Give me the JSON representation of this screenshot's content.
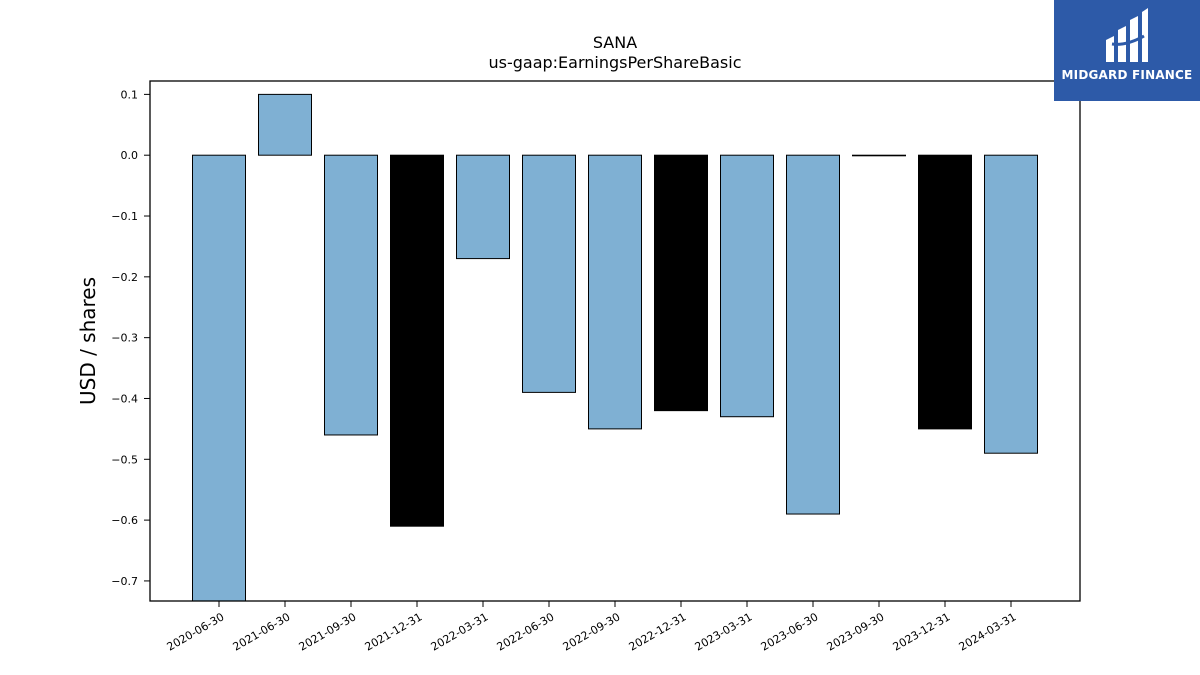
{
  "chart_data": {
    "type": "bar",
    "title": "SANA",
    "subtitle": "us-gaap:EarningsPerShareBasic",
    "xlabel": "",
    "ylabel": "USD / shares",
    "ylim": [
      -0.733,
      0.122
    ],
    "yticks": [
      0.1,
      0.0,
      -0.1,
      -0.2,
      -0.3,
      -0.4,
      -0.5,
      -0.6,
      -0.7
    ],
    "ytick_labels": [
      "0.1",
      "0.0",
      "−0.1",
      "−0.2",
      "−0.3",
      "−0.4",
      "−0.5",
      "−0.6",
      "−0.7"
    ],
    "categories": [
      "2020-06-30",
      "2021-06-30",
      "2021-09-30",
      "2021-12-31",
      "2022-03-31",
      "2022-06-30",
      "2022-09-30",
      "2022-12-31",
      "2023-03-31",
      "2023-06-30",
      "2023-09-30",
      "2023-12-31",
      "2024-03-31"
    ],
    "values": [
      -0.75,
      0.1,
      -0.46,
      -0.61,
      -0.17,
      -0.39,
      -0.45,
      -0.42,
      -0.43,
      -0.59,
      0.0,
      -0.45,
      -0.49
    ],
    "bar_colors": [
      "#7fb0d3",
      "#7fb0d3",
      "#7fb0d3",
      "#000000",
      "#7fb0d3",
      "#7fb0d3",
      "#7fb0d3",
      "#000000",
      "#7fb0d3",
      "#7fb0d3",
      "#000000",
      "#000000",
      "#7fb0d3"
    ],
    "grid": false,
    "legend": "none"
  },
  "logo": {
    "text": "MIDGARD FINANCE",
    "background": "#2d5aa8",
    "color": "#ffffff"
  }
}
